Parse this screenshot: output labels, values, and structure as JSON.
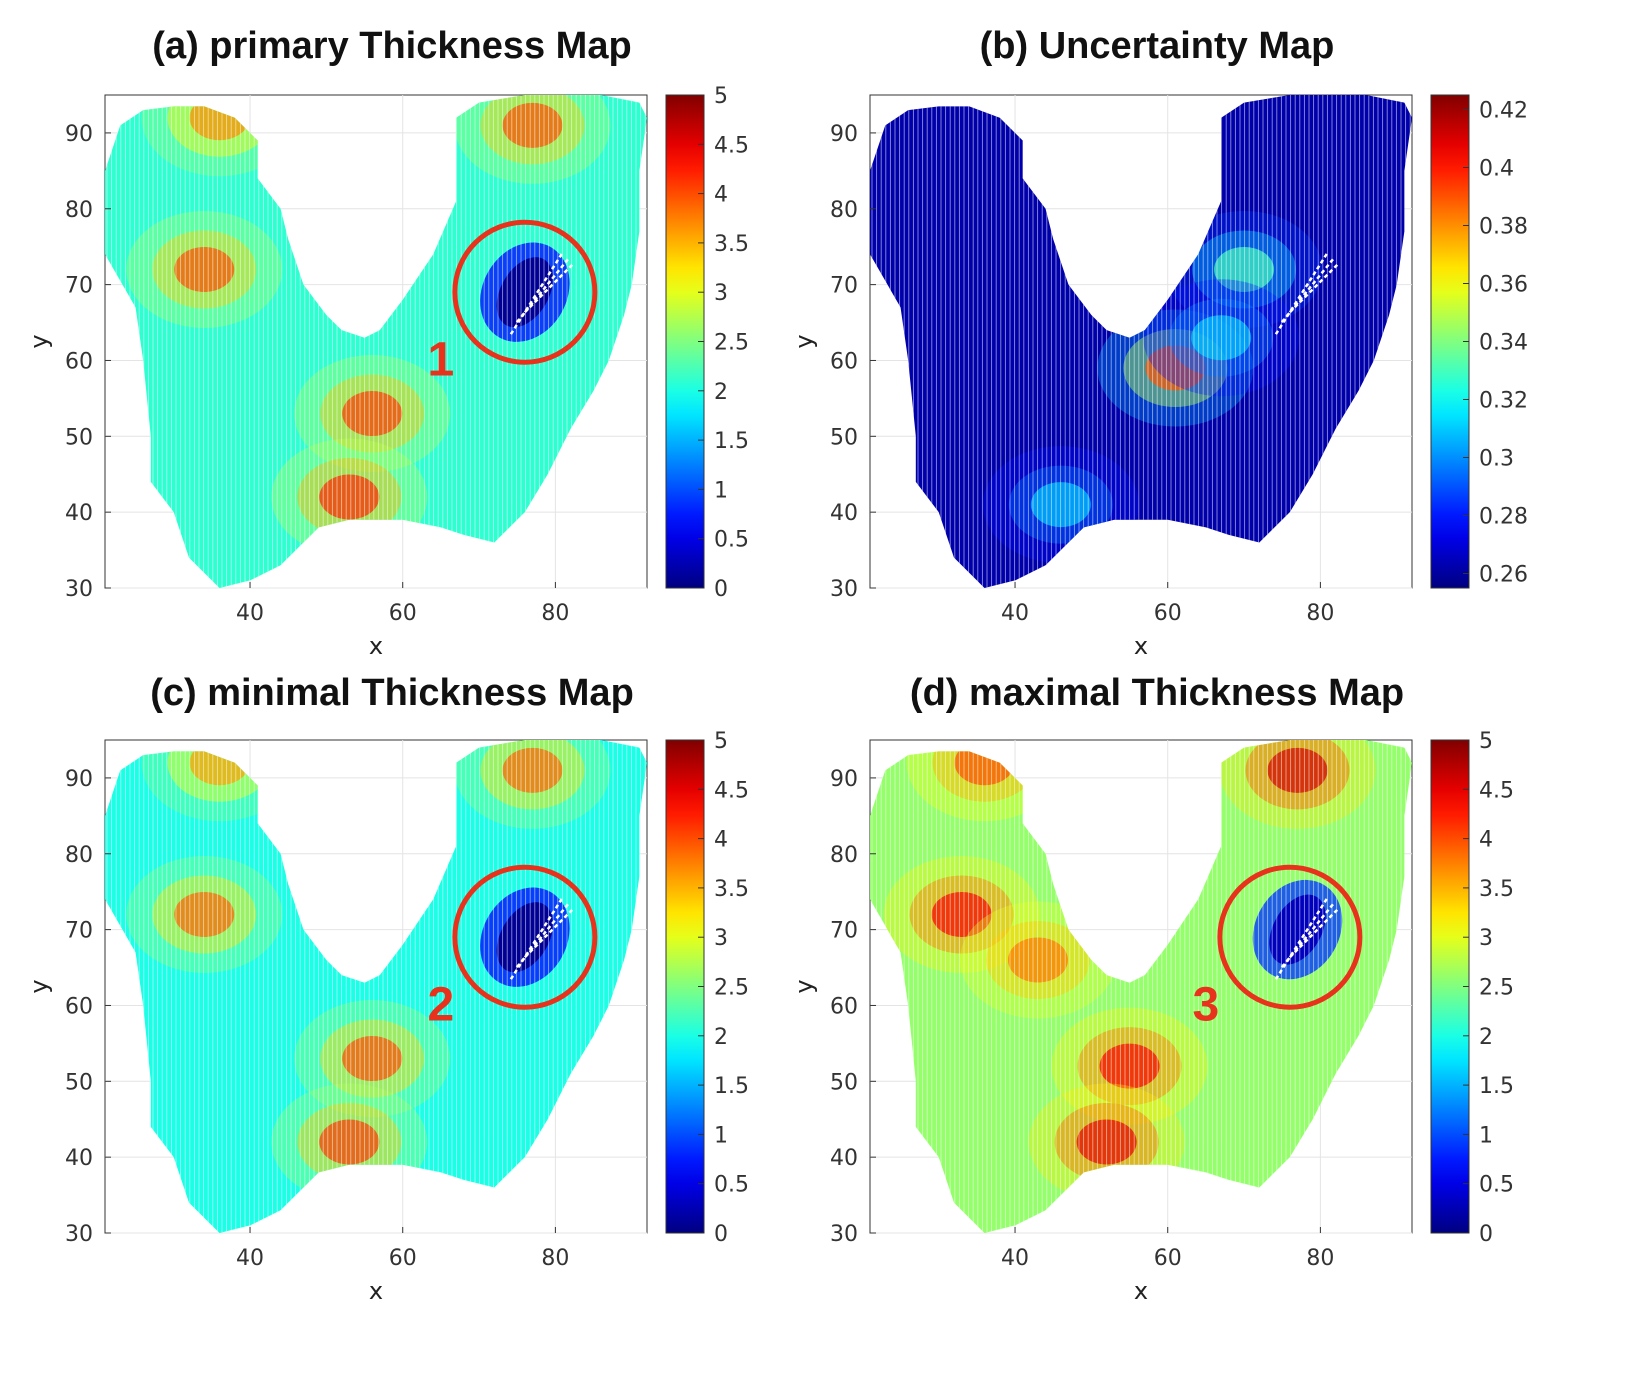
{
  "figure": {
    "colors": {
      "marker": "#e8321c",
      "grid": "#e4e4e4",
      "axis": "#333333"
    },
    "colormap": "jet"
  },
  "chart_data": [
    {
      "id": "a",
      "type": "heatmap",
      "title": "(a) primary Thickness Map",
      "xlabel": "x",
      "ylabel": "y",
      "xlim": [
        21,
        92
      ],
      "ylim": [
        30,
        95
      ],
      "xticks": [
        "40",
        "60",
        "80"
      ],
      "xtick_values": [
        40,
        60,
        80
      ],
      "yticks": [
        "30",
        "40",
        "50",
        "60",
        "70",
        "80",
        "90"
      ],
      "ytick_values": [
        30,
        40,
        50,
        60,
        70,
        80,
        90
      ],
      "colorbar": {
        "range": [
          0,
          5
        ],
        "ticks": [
          "0",
          "0.5",
          "1",
          "1.5",
          "2",
          "2.5",
          "3",
          "3.5",
          "4",
          "4.5",
          "5"
        ],
        "tick_values": [
          0,
          0.5,
          1,
          1.5,
          2,
          2.5,
          3,
          3.5,
          4,
          4.5,
          5
        ]
      },
      "hotspots": [
        {
          "x": 56,
          "y": 53,
          "value": 4.1
        },
        {
          "x": 53,
          "y": 42,
          "value": 4.2
        },
        {
          "x": 34,
          "y": 72,
          "value": 4.0
        },
        {
          "x": 77,
          "y": 91,
          "value": 4.0
        },
        {
          "x": 36,
          "y": 92,
          "value": 3.7
        }
      ],
      "base_value": 2.1,
      "defect_zone": {
        "x": 76,
        "y": 69,
        "value": 0.1
      },
      "circle": {
        "x": 76,
        "y": 69
      },
      "marker": {
        "label": "1",
        "x": 65,
        "y": 58
      }
    },
    {
      "id": "b",
      "type": "heatmap",
      "title": "(b) Uncertainty Map",
      "xlabel": "x",
      "ylabel": "y",
      "xlim": [
        21,
        92
      ],
      "ylim": [
        30,
        95
      ],
      "xticks": [
        "40",
        "60",
        "80"
      ],
      "xtick_values": [
        40,
        60,
        80
      ],
      "yticks": [
        "30",
        "40",
        "50",
        "60",
        "70",
        "80",
        "90"
      ],
      "ytick_values": [
        30,
        40,
        50,
        60,
        70,
        80,
        90
      ],
      "colorbar": {
        "range": [
          0.255,
          0.425
        ],
        "ticks": [
          "0.26",
          "0.28",
          "0.3",
          "0.32",
          "0.34",
          "0.36",
          "0.38",
          "0.4",
          "0.42"
        ],
        "tick_values": [
          0.26,
          0.28,
          0.3,
          0.32,
          0.34,
          0.36,
          0.38,
          0.4,
          0.42
        ]
      },
      "hotspots": [
        {
          "x": 61,
          "y": 59,
          "value": 0.39
        },
        {
          "x": 46,
          "y": 41,
          "value": 0.31
        },
        {
          "x": 70,
          "y": 72,
          "value": 0.33
        },
        {
          "x": 67,
          "y": 63,
          "value": 0.31
        }
      ],
      "base_value": 0.262,
      "defect_zone": null,
      "circle": null,
      "marker": null
    },
    {
      "id": "c",
      "type": "heatmap",
      "title": "(c) minimal Thickness Map",
      "xlabel": "x",
      "ylabel": "y",
      "xlim": [
        21,
        92
      ],
      "ylim": [
        30,
        95
      ],
      "xticks": [
        "40",
        "60",
        "80"
      ],
      "xtick_values": [
        40,
        60,
        80
      ],
      "yticks": [
        "30",
        "40",
        "50",
        "60",
        "70",
        "80",
        "90"
      ],
      "ytick_values": [
        30,
        40,
        50,
        60,
        70,
        80,
        90
      ],
      "colorbar": {
        "range": [
          0,
          5
        ],
        "ticks": [
          "0",
          "0.5",
          "1",
          "1.5",
          "2",
          "2.5",
          "3",
          "3.5",
          "4",
          "4.5",
          "5"
        ],
        "tick_values": [
          0,
          0.5,
          1,
          1.5,
          2,
          2.5,
          3,
          3.5,
          4,
          4.5,
          5
        ]
      },
      "hotspots": [
        {
          "x": 56,
          "y": 53,
          "value": 4.0
        },
        {
          "x": 53,
          "y": 42,
          "value": 4.1
        },
        {
          "x": 34,
          "y": 72,
          "value": 3.9
        },
        {
          "x": 77,
          "y": 91,
          "value": 3.9
        },
        {
          "x": 36,
          "y": 92,
          "value": 3.6
        }
      ],
      "base_value": 2.0,
      "defect_zone": {
        "x": 76,
        "y": 69,
        "value": 0.1
      },
      "circle": {
        "x": 76,
        "y": 69
      },
      "marker": {
        "label": "2",
        "x": 65,
        "y": 58
      }
    },
    {
      "id": "d",
      "type": "heatmap",
      "title": "(d) maximal Thickness Map",
      "xlabel": "x",
      "ylabel": "y",
      "xlim": [
        21,
        92
      ],
      "ylim": [
        30,
        95
      ],
      "xticks": [
        "40",
        "60",
        "80"
      ],
      "xtick_values": [
        40,
        60,
        80
      ],
      "yticks": [
        "30",
        "40",
        "50",
        "60",
        "70",
        "80",
        "90"
      ],
      "ytick_values": [
        30,
        40,
        50,
        60,
        70,
        80,
        90
      ],
      "colorbar": {
        "range": [
          0,
          5
        ],
        "ticks": [
          "0",
          "0.5",
          "1",
          "1.5",
          "2",
          "2.5",
          "3",
          "3.5",
          "4",
          "4.5",
          "5"
        ],
        "tick_values": [
          0,
          0.5,
          1,
          1.5,
          2,
          2.5,
          3,
          3.5,
          4,
          4.5,
          5
        ]
      },
      "hotspots": [
        {
          "x": 55,
          "y": 52,
          "value": 4.4
        },
        {
          "x": 52,
          "y": 42,
          "value": 4.5
        },
        {
          "x": 33,
          "y": 72,
          "value": 4.4
        },
        {
          "x": 77,
          "y": 91,
          "value": 4.6
        },
        {
          "x": 36,
          "y": 92,
          "value": 4.0
        },
        {
          "x": 43,
          "y": 66,
          "value": 3.8
        }
      ],
      "base_value": 2.6,
      "defect_zone": {
        "x": 77,
        "y": 70,
        "value": 0.3
      },
      "circle": {
        "x": 76,
        "y": 69
      },
      "marker": {
        "label": "3",
        "x": 65,
        "y": 58
      }
    }
  ]
}
